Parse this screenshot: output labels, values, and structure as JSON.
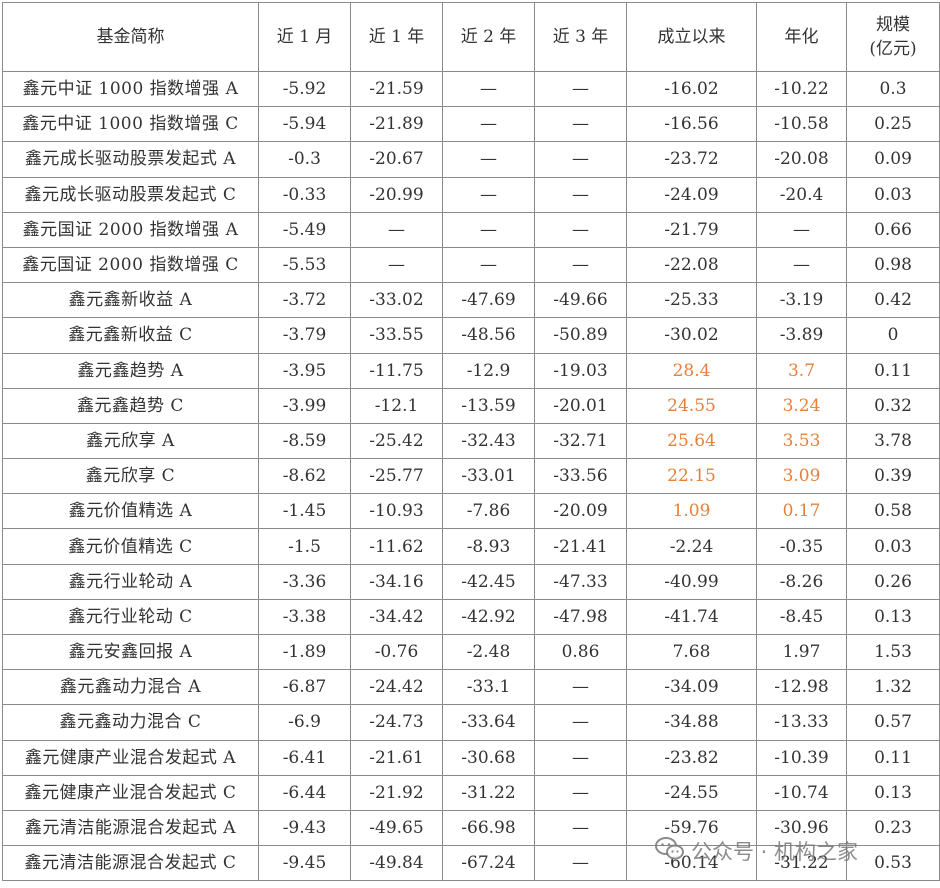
{
  "table": {
    "headers": [
      "基金简称",
      "近 1 月",
      "近 1 年",
      "近 2 年",
      "近 3 年",
      "成立以来",
      "年化",
      "规模(亿元)"
    ],
    "header_line1": [
      "基金简称",
      "近 1 月",
      "近 1 年",
      "近 2 年",
      "近 3 年",
      "成立以来",
      "年化",
      "规模"
    ],
    "header_line2": [
      "",
      "",
      "",
      "",
      "",
      "",
      "",
      "(亿元)"
    ],
    "rows": [
      [
        "鑫元中证 1000 指数增强 A",
        "-5.92",
        "-21.59",
        "—",
        "—",
        "-16.02",
        "-10.22",
        "0.3"
      ],
      [
        "鑫元中证 1000 指数增强 C",
        "-5.94",
        "-21.89",
        "—",
        "—",
        "-16.56",
        "-10.58",
        "0.25"
      ],
      [
        "鑫元成长驱动股票发起式 A",
        "-0.3",
        "-20.67",
        "—",
        "—",
        "-23.72",
        "-20.08",
        "0.09"
      ],
      [
        "鑫元成长驱动股票发起式 C",
        "-0.33",
        "-20.99",
        "—",
        "—",
        "-24.09",
        "-20.4",
        "0.03"
      ],
      [
        "鑫元国证 2000 指数增强 A",
        "-5.49",
        "—",
        "—",
        "—",
        "-21.79",
        "—",
        "0.66"
      ],
      [
        "鑫元国证 2000 指数增强 C",
        "-5.53",
        "—",
        "—",
        "—",
        "-22.08",
        "—",
        "0.98"
      ],
      [
        "鑫元鑫新收益 A",
        "-3.72",
        "-33.02",
        "-47.69",
        "-49.66",
        "-25.33",
        "-3.19",
        "0.42"
      ],
      [
        "鑫元鑫新收益 C",
        "-3.79",
        "-33.55",
        "-48.56",
        "-50.89",
        "-30.02",
        "-3.89",
        "0"
      ],
      [
        "鑫元鑫趋势 A",
        "-3.95",
        "-11.75",
        "-12.9",
        "-19.03",
        "28.4",
        "3.7",
        "0.11"
      ],
      [
        "鑫元鑫趋势 C",
        "-3.99",
        "-12.1",
        "-13.59",
        "-20.01",
        "24.55",
        "3.24",
        "0.32"
      ],
      [
        "鑫元欣享 A",
        "-8.59",
        "-25.42",
        "-32.43",
        "-32.71",
        "25.64",
        "3.53",
        "3.78"
      ],
      [
        "鑫元欣享 C",
        "-8.62",
        "-25.77",
        "-33.01",
        "-33.56",
        "22.15",
        "3.09",
        "0.39"
      ],
      [
        "鑫元价值精选 A",
        "-1.45",
        "-10.93",
        "-7.86",
        "-20.09",
        "1.09",
        "0.17",
        "0.58"
      ],
      [
        "鑫元价值精选 C",
        "-1.5",
        "-11.62",
        "-8.93",
        "-21.41",
        "-2.24",
        "-0.35",
        "0.03"
      ],
      [
        "鑫元行业轮动 A",
        "-3.36",
        "-34.16",
        "-42.45",
        "-47.33",
        "-40.99",
        "-8.26",
        "0.26"
      ],
      [
        "鑫元行业轮动 C",
        "-3.38",
        "-34.42",
        "-42.92",
        "-47.98",
        "-41.74",
        "-8.45",
        "0.13"
      ],
      [
        "鑫元安鑫回报 A",
        "-1.89",
        "-0.76",
        "-2.48",
        "0.86",
        "7.68",
        "1.97",
        "1.53"
      ],
      [
        "鑫元鑫动力混合 A",
        "-6.87",
        "-24.42",
        "-33.1",
        "—",
        "-34.09",
        "-12.98",
        "1.32"
      ],
      [
        "鑫元鑫动力混合 C",
        "-6.9",
        "-24.73",
        "-33.64",
        "—",
        "-34.88",
        "-13.33",
        "0.57"
      ],
      [
        "鑫元健康产业混合发起式 A",
        "-6.41",
        "-21.61",
        "-30.68",
        "—",
        "-23.82",
        "-10.39",
        "0.11"
      ],
      [
        "鑫元健康产业混合发起式 C",
        "-6.44",
        "-21.92",
        "-31.22",
        "—",
        "-24.55",
        "-10.74",
        "0.13"
      ],
      [
        "鑫元清洁能源混合发起式 A",
        "-9.43",
        "-49.65",
        "-66.98",
        "—",
        "-59.76",
        "-30.96",
        "0.23"
      ],
      [
        "鑫元清洁能源混合发起式 C",
        "-9.45",
        "-49.84",
        "-67.24",
        "—",
        "-60.14",
        "-31.22",
        "0.53"
      ]
    ],
    "highlighted_rows": [
      8,
      9,
      10,
      11,
      12
    ],
    "highlighted_cols": [
      5,
      6
    ]
  },
  "watermark": {
    "text": "公众号 · 机构之家",
    "icon": "wechat-icon"
  },
  "colors": {
    "text": "#333333",
    "highlight": "#e6803a",
    "border": "#8a8a8a"
  }
}
